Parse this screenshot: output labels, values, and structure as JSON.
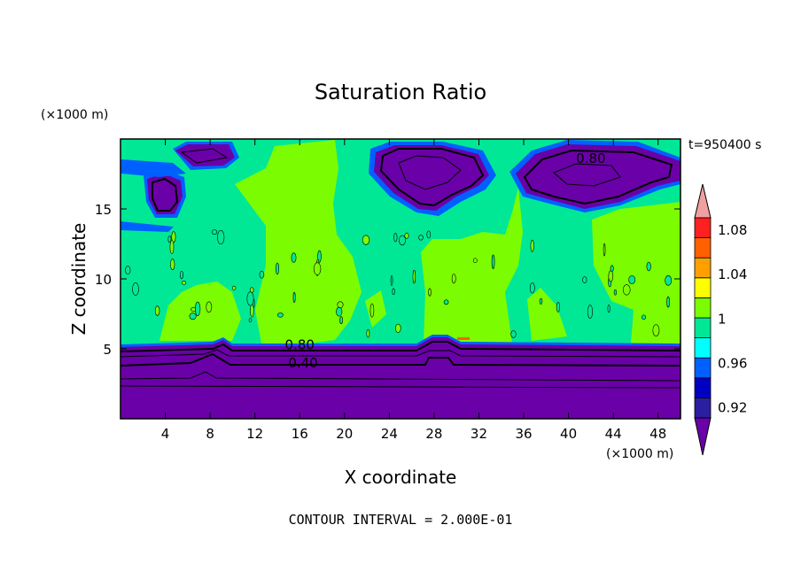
{
  "chart_data": {
    "type": "heatmap",
    "title": "Saturation Ratio",
    "xlabel": "X coordinate",
    "ylabel": "Z coordinate",
    "x_unit": "(×1000 m)",
    "y_unit": "(×1000 m)",
    "time_label": "t=950400 s",
    "footer": "CONTOUR INTERVAL = 2.000E-01",
    "xlim": [
      0,
      50
    ],
    "ylim": [
      0,
      20
    ],
    "x_ticks": [
      4,
      8,
      12,
      16,
      20,
      24,
      28,
      32,
      36,
      40,
      44,
      48
    ],
    "y_ticks": [
      5,
      10,
      15
    ],
    "contour_labels": [
      {
        "text": "0.80",
        "x": 16,
        "z": 5.3
      },
      {
        "text": "0.40",
        "x": 16.3,
        "z": 4.0
      },
      {
        "text": "0.80",
        "x": 42,
        "z": 18.6
      }
    ],
    "colorbar": {
      "levels": [
        0.92,
        0.94,
        0.96,
        0.98,
        1.0,
        1.02,
        1.04,
        1.06,
        1.08,
        1.1
      ],
      "tick_labels": [
        "0.92",
        "0.96",
        "1",
        "1.04",
        "1.08"
      ],
      "tick_values": [
        0.92,
        0.96,
        1.0,
        1.04,
        1.08
      ],
      "colors": [
        "#6a00a8",
        "#2a1fa0",
        "#0000c0",
        "#0060ff",
        "#00ffff",
        "#00e896",
        "#7cfc00",
        "#ffff00",
        "#ffa000",
        "#ff6000",
        "#ff2020",
        "#f0a0a0"
      ]
    },
    "regions": {
      "lower_band_top_km": 5.5,
      "lower_band_color": "#6a00a8",
      "background_color": "#00e896",
      "supersaturated_color": "#7cfc00",
      "upper_dry_color": "#6a00a8",
      "edge_color": "#0060ff"
    }
  }
}
